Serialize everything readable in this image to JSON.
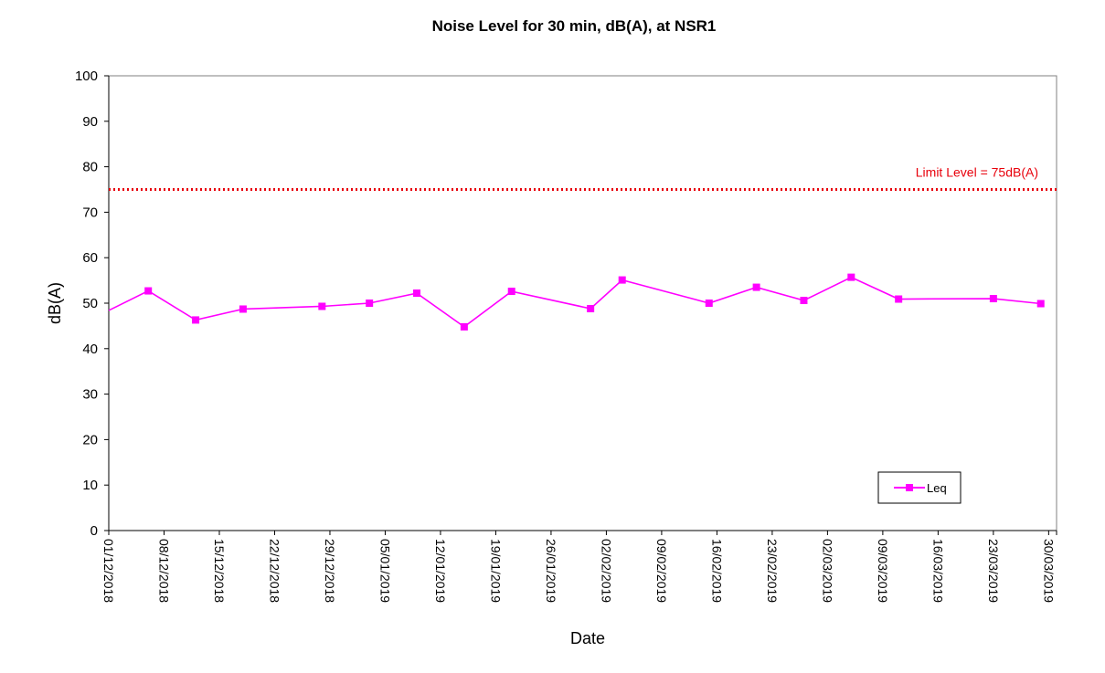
{
  "chart_data": {
    "type": "line",
    "title": "Noise Level for 30 min, dB(A), at NSR1",
    "xlabel": "Date",
    "ylabel": "dB(A)",
    "ylim": [
      0,
      100
    ],
    "yticks": [
      0,
      10,
      20,
      30,
      40,
      50,
      60,
      70,
      80,
      90,
      100
    ],
    "xlim": [
      "2018-12-01",
      "2019-03-31"
    ],
    "xtick_labels": [
      "01/12/2018",
      "08/12/2018",
      "15/12/2018",
      "22/12/2018",
      "29/12/2018",
      "05/01/2019",
      "12/01/2019",
      "19/01/2019",
      "26/01/2019",
      "02/02/2019",
      "09/02/2019",
      "16/02/2019",
      "23/02/2019",
      "02/03/2019",
      "09/03/2019",
      "16/03/2019",
      "23/03/2019",
      "30/03/2019"
    ],
    "xtick_dates": [
      "2018-12-01",
      "2018-12-08",
      "2018-12-15",
      "2018-12-22",
      "2018-12-29",
      "2019-01-05",
      "2019-01-12",
      "2019-01-19",
      "2019-01-26",
      "2019-02-02",
      "2019-02-09",
      "2019-02-16",
      "2019-02-23",
      "2019-03-02",
      "2019-03-09",
      "2019-03-16",
      "2019-03-23",
      "2019-03-30"
    ],
    "grid": false,
    "legend_position": "bottom-right",
    "series": [
      {
        "name": "Leq",
        "color": "#FF00FF",
        "marker": "square",
        "x": [
          "2018-12-06",
          "2018-12-12",
          "2018-12-18",
          "2018-12-28",
          "2019-01-03",
          "2019-01-09",
          "2019-01-15",
          "2019-01-21",
          "2019-01-31",
          "2019-02-04",
          "2019-02-15",
          "2019-02-21",
          "2019-02-27",
          "2019-03-05",
          "2019-03-11",
          "2019-03-23",
          "2019-03-29"
        ],
        "values": [
          52.7,
          46.3,
          48.7,
          49.3,
          50.0,
          52.2,
          44.8,
          52.6,
          48.8,
          55.1,
          50.0,
          53.5,
          50.6,
          55.7,
          50.9,
          51.0,
          49.9
        ]
      }
    ],
    "line_from_left_edge_value": 48.4,
    "reference_line": {
      "value": 75,
      "label": "Limit Level = 75dB(A)",
      "color": "#E8000B",
      "style": "dotted"
    }
  }
}
